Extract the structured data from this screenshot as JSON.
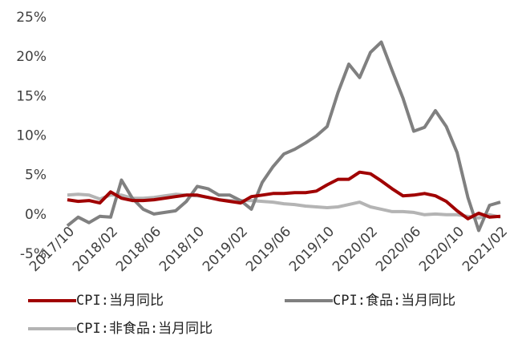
{
  "chart_data": {
    "type": "line",
    "categories": [
      "2017/10",
      null,
      null,
      null,
      "2018/02",
      null,
      null,
      null,
      "2018/06",
      null,
      null,
      null,
      "2018/10",
      null,
      null,
      null,
      "2019/02",
      null,
      null,
      null,
      "2019/06",
      null,
      null,
      null,
      "2019/10",
      null,
      null,
      null,
      "2020/02",
      null,
      null,
      null,
      "2020/06",
      null,
      null,
      null,
      "2020/10",
      null,
      null,
      null,
      "2021/02"
    ],
    "series": [
      {
        "name": "CPI:当月同比",
        "color": "#a00000",
        "values": [
          1.9,
          1.7,
          1.8,
          1.5,
          2.9,
          2.1,
          1.8,
          1.8,
          1.9,
          2.1,
          2.3,
          2.5,
          2.5,
          2.2,
          1.9,
          1.7,
          1.5,
          2.3,
          2.5,
          2.7,
          2.7,
          2.8,
          2.8,
          3.0,
          3.8,
          4.5,
          4.5,
          5.4,
          5.2,
          4.3,
          3.3,
          2.4,
          2.5,
          2.7,
          2.4,
          1.7,
          0.5,
          -0.5,
          0.2,
          -0.3,
          -0.2
        ]
      },
      {
        "name": "CPI:食品:当月同比",
        "color": "#808080",
        "values": [
          -1.4,
          -0.3,
          -1.0,
          -0.2,
          -0.3,
          4.4,
          2.1,
          0.7,
          0.1,
          0.3,
          0.5,
          1.7,
          3.6,
          3.3,
          2.5,
          2.5,
          1.8,
          0.7,
          4.1,
          6.1,
          7.7,
          8.3,
          9.1,
          10.0,
          11.2,
          15.5,
          19.1,
          17.4,
          20.6,
          21.9,
          18.3,
          14.8,
          10.6,
          11.1,
          13.2,
          11.2,
          7.9,
          2.2,
          -2.0,
          1.2,
          1.6
        ]
      },
      {
        "name": "CPI:非食品:当月同比",
        "color": "#b4b4b4",
        "values": [
          2.5,
          2.6,
          2.5,
          2.0,
          2.5,
          2.5,
          2.1,
          2.1,
          2.2,
          2.4,
          2.6,
          2.5,
          2.4,
          2.2,
          1.9,
          1.8,
          1.8,
          1.8,
          1.7,
          1.6,
          1.4,
          1.3,
          1.1,
          1.0,
          0.9,
          1.0,
          1.3,
          1.6,
          1.0,
          0.7,
          0.4,
          0.4,
          0.3,
          0.0,
          0.1,
          0.0,
          0.0,
          -0.2,
          -0.4,
          0.0,
          -0.3
        ]
      }
    ],
    "ylim": [
      -5,
      25
    ],
    "yticks": [
      {
        "value": -5,
        "label": "-5%"
      },
      {
        "value": 0,
        "label": "0%"
      },
      {
        "value": 5,
        "label": "5%"
      },
      {
        "value": 10,
        "label": "10%"
      },
      {
        "value": 15,
        "label": "15%"
      },
      {
        "value": 20,
        "label": "20%"
      },
      {
        "value": 25,
        "label": "25%"
      }
    ]
  }
}
